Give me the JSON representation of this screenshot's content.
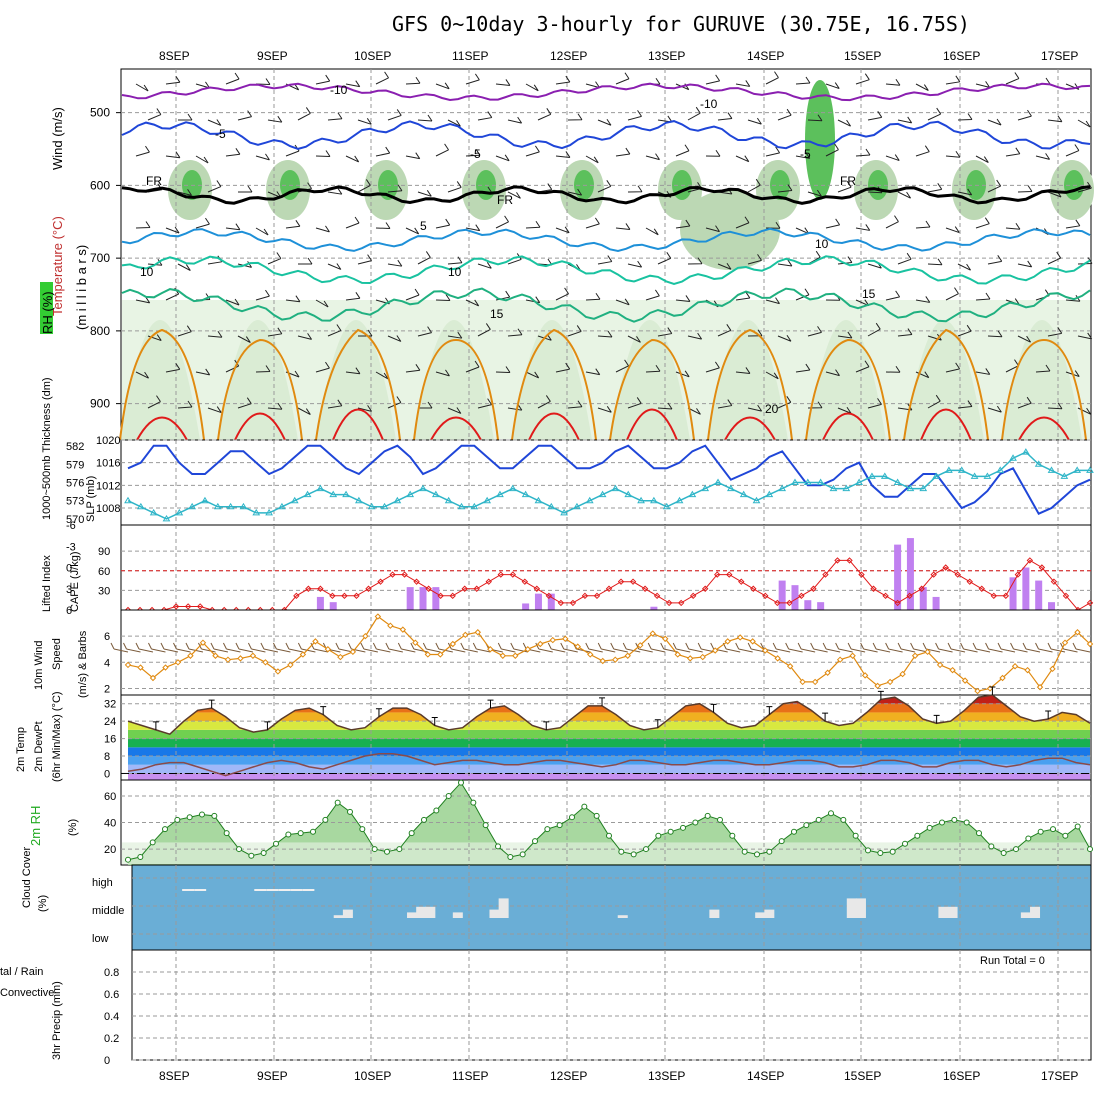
{
  "title": "GFS 0~10day 3-hourly for GURUVE (30.75E, 16.75S)",
  "dates": [
    "8SEP",
    "9SEP",
    "10SEP",
    "11SEP",
    "12SEP",
    "13SEP",
    "14SEP",
    "15SEP",
    "16SEP",
    "17SEP"
  ],
  "colors": {
    "purple": "#8a1fb0",
    "blue": "#1f46d8",
    "cyan": "#2fb5c8",
    "teal": "#19c2a0",
    "orange": "#e08a10",
    "red": "#e01a1a",
    "magenta": "#c8007a",
    "green": "#22aa22",
    "cloud": "#6aaed6",
    "cape": "#c080f0",
    "grid": "#9a9a9a"
  },
  "labels": {
    "wind_ylabel": "Wind (m/s)",
    "temp_ylabel": "Temperature (°C)",
    "mb_ylabel": "(m i l l i b a r s)",
    "rh_ylabel": "RH (%)",
    "thick_ylabel": "1000~500mb Thickness (dm)",
    "slp_ylabel": "SLP (mb)",
    "li_ylabel": "Lifted Index",
    "cape_ylabel": "CAPE (J/kg)",
    "wind10_ylabel": "10m Wind",
    "speed_ylabel": "Speed",
    "ms_ylabel": "(m/s) & Barbs",
    "t2m_ylabel": "2m Temp",
    "dew_ylabel": "2m DewPt",
    "minmax_ylabel": "(6hr Min/Max) (°C)",
    "rh2m_ylabel": "2m RH",
    "rh2m_unit": "(%)",
    "cloud_ylabel": "Cloud Cover",
    "cloud_unit": "(%)",
    "precip_ylabel": "3hr Precip (mm)",
    "total_rain": "tal / Rain",
    "convective": "Convective",
    "run_total": "Run Total = 0"
  },
  "chart_data": [
    {
      "type": "heatmap",
      "panel": "upper-air",
      "ylabel": "millibars",
      "ylim": [
        440,
        950
      ],
      "yticks": [
        500,
        600,
        700,
        800,
        900
      ],
      "contour_labels": [
        "-10",
        "-10",
        "-5",
        "-5",
        "-5",
        "5",
        "10",
        "10",
        "10",
        "15",
        "15",
        "20",
        "FR",
        "FR",
        "FR"
      ]
    },
    {
      "type": "line",
      "panel": "pressure-thickness",
      "series": [
        {
          "name": "SLP (mb)",
          "axis": "right-scale",
          "ylim": [
            1005,
            1020
          ],
          "yticks": [
            1008,
            1012,
            1016,
            1020
          ],
          "values": [
            1015,
            1016,
            1019,
            1019,
            1016,
            1014,
            1014,
            1016,
            1018,
            1018,
            1016,
            1014,
            1015,
            1017,
            1019,
            1019,
            1017,
            1015,
            1014,
            1016,
            1018,
            1019,
            1017,
            1014,
            1015,
            1017,
            1019,
            1019,
            1017,
            1015,
            1015,
            1017,
            1019,
            1019,
            1017,
            1015,
            1015,
            1016,
            1018,
            1019,
            1017,
            1015,
            1015,
            1016,
            1018,
            1019,
            1016,
            1013,
            1014,
            1015,
            1017,
            1018,
            1015,
            1012,
            1012,
            1013,
            1015,
            1016,
            1012,
            1010,
            1010,
            1012,
            1014,
            1014,
            1011,
            1008,
            1009,
            1011,
            1014,
            1015,
            1011,
            1007,
            1008,
            1010,
            1012,
            1013
          ]
        },
        {
          "name": "1000~500mb Thickness (dm)",
          "ylim": [
            569,
            583
          ],
          "yticks": [
            570,
            573,
            576,
            579,
            582
          ],
          "values": [
            573,
            572,
            571,
            570,
            571,
            572,
            573,
            572,
            572,
            572,
            571,
            571,
            572,
            573,
            574,
            575,
            574,
            574,
            573,
            572,
            572,
            573,
            574,
            575,
            574,
            573,
            572,
            572,
            573,
            574,
            575,
            574,
            573,
            572,
            571,
            572,
            573,
            574,
            575,
            574,
            573,
            573,
            572,
            573,
            574,
            575,
            576,
            575,
            574,
            573,
            574,
            575,
            576,
            576,
            576,
            575,
            575,
            576,
            577,
            577,
            576,
            575,
            575,
            577,
            578,
            578,
            577,
            577,
            578,
            580,
            581,
            579,
            578,
            577,
            578,
            578
          ]
        }
      ]
    },
    {
      "type": "bar",
      "panel": "cape-lifted-index",
      "series": [
        {
          "name": "CAPE (J/kg)",
          "ylim": [
            0,
            130
          ],
          "yticks": [
            30,
            60,
            90
          ],
          "values": [
            0,
            0,
            0,
            0,
            0,
            0,
            0,
            0,
            0,
            0,
            0,
            0,
            0,
            0,
            0,
            20,
            12,
            0,
            0,
            0,
            0,
            0,
            35,
            35,
            35,
            0,
            0,
            0,
            0,
            0,
            0,
            10,
            25,
            25,
            0,
            0,
            0,
            0,
            0,
            0,
            0,
            5,
            0,
            0,
            0,
            0,
            0,
            0,
            0,
            0,
            0,
            45,
            38,
            15,
            12,
            0,
            0,
            0,
            0,
            0,
            100,
            110,
            35,
            20,
            0,
            0,
            0,
            0,
            0,
            50,
            65,
            45,
            12,
            0,
            0,
            0
          ]
        },
        {
          "name": "Lifted Index",
          "ylim": [
            6,
            -6
          ],
          "yticks": [
            6,
            3,
            0,
            -3,
            -6
          ],
          "values": [
            6,
            6,
            6,
            6,
            5.5,
            5.5,
            5.5,
            6,
            6,
            6,
            6,
            6,
            6,
            6,
            4,
            3,
            3,
            4,
            4,
            4,
            3,
            2,
            1,
            1,
            2,
            3,
            4,
            4,
            3,
            3,
            2,
            1,
            1,
            2,
            3,
            4,
            5,
            5,
            4,
            4,
            3,
            2,
            2,
            3,
            4,
            5,
            5,
            4,
            3,
            1,
            1,
            2,
            3,
            4,
            5,
            5,
            4,
            3,
            1,
            -1,
            -1,
            1,
            3,
            4,
            5,
            4,
            3,
            1,
            0,
            1,
            2,
            3,
            4,
            4,
            1,
            -1,
            0,
            2,
            4,
            6,
            5
          ]
        }
      ]
    },
    {
      "type": "line",
      "panel": "10m-wind-speed",
      "ylabel": "m/s",
      "ylim": [
        1.5,
        8
      ],
      "yticks": [
        2,
        4,
        6
      ],
      "values": [
        3.8,
        3.6,
        2.8,
        3.6,
        4,
        4.5,
        5.5,
        4.5,
        4.2,
        4.3,
        4.5,
        4,
        3.3,
        3.8,
        4.6,
        5.6,
        5,
        4.4,
        4.8,
        6,
        7.5,
        6.8,
        6.5,
        5.5,
        4.6,
        4.6,
        5.4,
        6.1,
        6.3,
        5,
        4.5,
        4.5,
        5,
        5.4,
        5.7,
        5.8,
        5.2,
        4.6,
        4.1,
        4.2,
        4.5,
        5.3,
        6.2,
        5.8,
        4.6,
        4.3,
        4.4,
        4.9,
        5.6,
        5.9,
        5.6,
        4.9,
        4.3,
        3.7,
        2.5,
        2.5,
        3.2,
        4.2,
        4.5,
        3,
        2.2,
        2.5,
        3.1,
        4.5,
        4.8,
        3.8,
        3.4,
        2.6,
        1.8,
        2,
        2.8,
        3.7,
        3.4,
        2.1,
        3.5,
        5.5,
        6.3,
        5.4
      ]
    },
    {
      "type": "area",
      "panel": "2m-temp-dewpoint",
      "ylabel": "°C",
      "ylim": [
        -3,
        36
      ],
      "yticks": [
        0,
        8,
        16,
        24,
        32
      ],
      "series": [
        {
          "name": "2m Temp",
          "values": [
            24,
            22,
            20,
            18,
            24,
            29,
            30,
            26,
            21,
            19,
            20,
            25,
            29,
            30,
            27,
            22,
            20,
            21,
            26,
            30,
            30,
            27,
            22,
            20,
            21,
            26,
            30,
            31,
            27,
            22,
            20,
            21,
            26,
            31,
            31,
            27,
            22,
            20,
            21,
            26,
            31,
            32,
            28,
            23,
            21,
            22,
            27,
            32,
            33,
            29,
            24,
            22,
            23,
            28,
            34,
            35,
            31,
            25,
            23,
            24,
            29,
            35,
            36,
            31,
            26,
            24,
            25,
            28,
            27,
            23
          ]
        },
        {
          "name": "2m DewPt",
          "values": [
            1,
            2,
            4,
            5,
            5,
            3,
            1,
            -1,
            1,
            3,
            5,
            6,
            5,
            3,
            2,
            4,
            6,
            8,
            9,
            9,
            8,
            6,
            4,
            5,
            6,
            6,
            5,
            4,
            4,
            5,
            6,
            6,
            5,
            4,
            3,
            4,
            6,
            6,
            5,
            4,
            4,
            5,
            6,
            6,
            5,
            4,
            4,
            5,
            6,
            6,
            5,
            3,
            3,
            4,
            6,
            6,
            5,
            3,
            3,
            5,
            6,
            6,
            4,
            3,
            4,
            6,
            7,
            7,
            5,
            4
          ]
        }
      ]
    },
    {
      "type": "area",
      "panel": "2m-rh",
      "ylabel": "%",
      "ylim": [
        8,
        72
      ],
      "yticks": [
        20,
        40,
        60
      ],
      "values": [
        12,
        14,
        25,
        35,
        42,
        44,
        46,
        45,
        32,
        20,
        15,
        17,
        24,
        31,
        32,
        33,
        42,
        55,
        48,
        35,
        20,
        18,
        20,
        32,
        42,
        49,
        60,
        70,
        55,
        38,
        22,
        14,
        16,
        26,
        35,
        38,
        44,
        52,
        45,
        30,
        18,
        16,
        20,
        30,
        33,
        36,
        40,
        45,
        42,
        30,
        18,
        16,
        18,
        26,
        33,
        38,
        42,
        47,
        42,
        30,
        19,
        17,
        18,
        24,
        30,
        36,
        40,
        42,
        40,
        32,
        22,
        17,
        20,
        28,
        33,
        35,
        30,
        37,
        20
      ]
    },
    {
      "type": "bar",
      "panel": "cloud-cover",
      "ylabel": "%",
      "categories": [
        "high",
        "middle",
        "low"
      ],
      "high_values": [
        0,
        0,
        0,
        0,
        0,
        1,
        1,
        0,
        0,
        0,
        0,
        1,
        1,
        1,
        1,
        1,
        0,
        0,
        0,
        0,
        0,
        0,
        0,
        0,
        0,
        0,
        0,
        0,
        0,
        0,
        0,
        0,
        0,
        0,
        0,
        0,
        0,
        0,
        0,
        0,
        0,
        0,
        0,
        0,
        0,
        0,
        0,
        0,
        0,
        0,
        0,
        0,
        0,
        0,
        0,
        0,
        0,
        0,
        0,
        0,
        0,
        0,
        0,
        0,
        0,
        0,
        0,
        0,
        0,
        0,
        0,
        0,
        0,
        0,
        0,
        0,
        0,
        0,
        0,
        0,
        0
      ],
      "middle_values": [
        0,
        0,
        0,
        0,
        0,
        0,
        0,
        0,
        0,
        0,
        0,
        0,
        0,
        0,
        0,
        0,
        0,
        0,
        0,
        0,
        0,
        0,
        0,
        10,
        30,
        0,
        0,
        0,
        0,
        0,
        0,
        20,
        40,
        40,
        0,
        0,
        20,
        0,
        0,
        0,
        30,
        70,
        0,
        0,
        0,
        0,
        0,
        0,
        0,
        0,
        0,
        0,
        0,
        0,
        10,
        0,
        0,
        0,
        0,
        0,
        0,
        0,
        0,
        0,
        30,
        0,
        0,
        0,
        0,
        20,
        30,
        0,
        0,
        0,
        0,
        0,
        0,
        0,
        0,
        70,
        70,
        0,
        0,
        0,
        0,
        0,
        0,
        0,
        0,
        40,
        40,
        0,
        0,
        0,
        0,
        0,
        0,
        0,
        20,
        40,
        0,
        0,
        0,
        0,
        0,
        0
      ]
    },
    {
      "type": "bar",
      "panel": "3hr-precip",
      "ylabel": "mm",
      "ylim": [
        0,
        1.0
      ],
      "yticks": [
        0,
        0.2,
        0.4,
        0.6,
        0.8
      ],
      "values": [
        0,
        0,
        0,
        0,
        0,
        0,
        0,
        0,
        0,
        0,
        0,
        0,
        0,
        0,
        0,
        0,
        0,
        0,
        0,
        0,
        0,
        0,
        0,
        0,
        0,
        0,
        0,
        0,
        0,
        0,
        0,
        0,
        0,
        0,
        0,
        0,
        0,
        0,
        0,
        0,
        0,
        0,
        0,
        0,
        0,
        0,
        0,
        0,
        0,
        0,
        0,
        0,
        0,
        0,
        0,
        0,
        0,
        0,
        0,
        0,
        0,
        0,
        0,
        0,
        0,
        0,
        0,
        0,
        0,
        0,
        0,
        0,
        0,
        0,
        0,
        0,
        0,
        0,
        0,
        0
      ]
    }
  ]
}
